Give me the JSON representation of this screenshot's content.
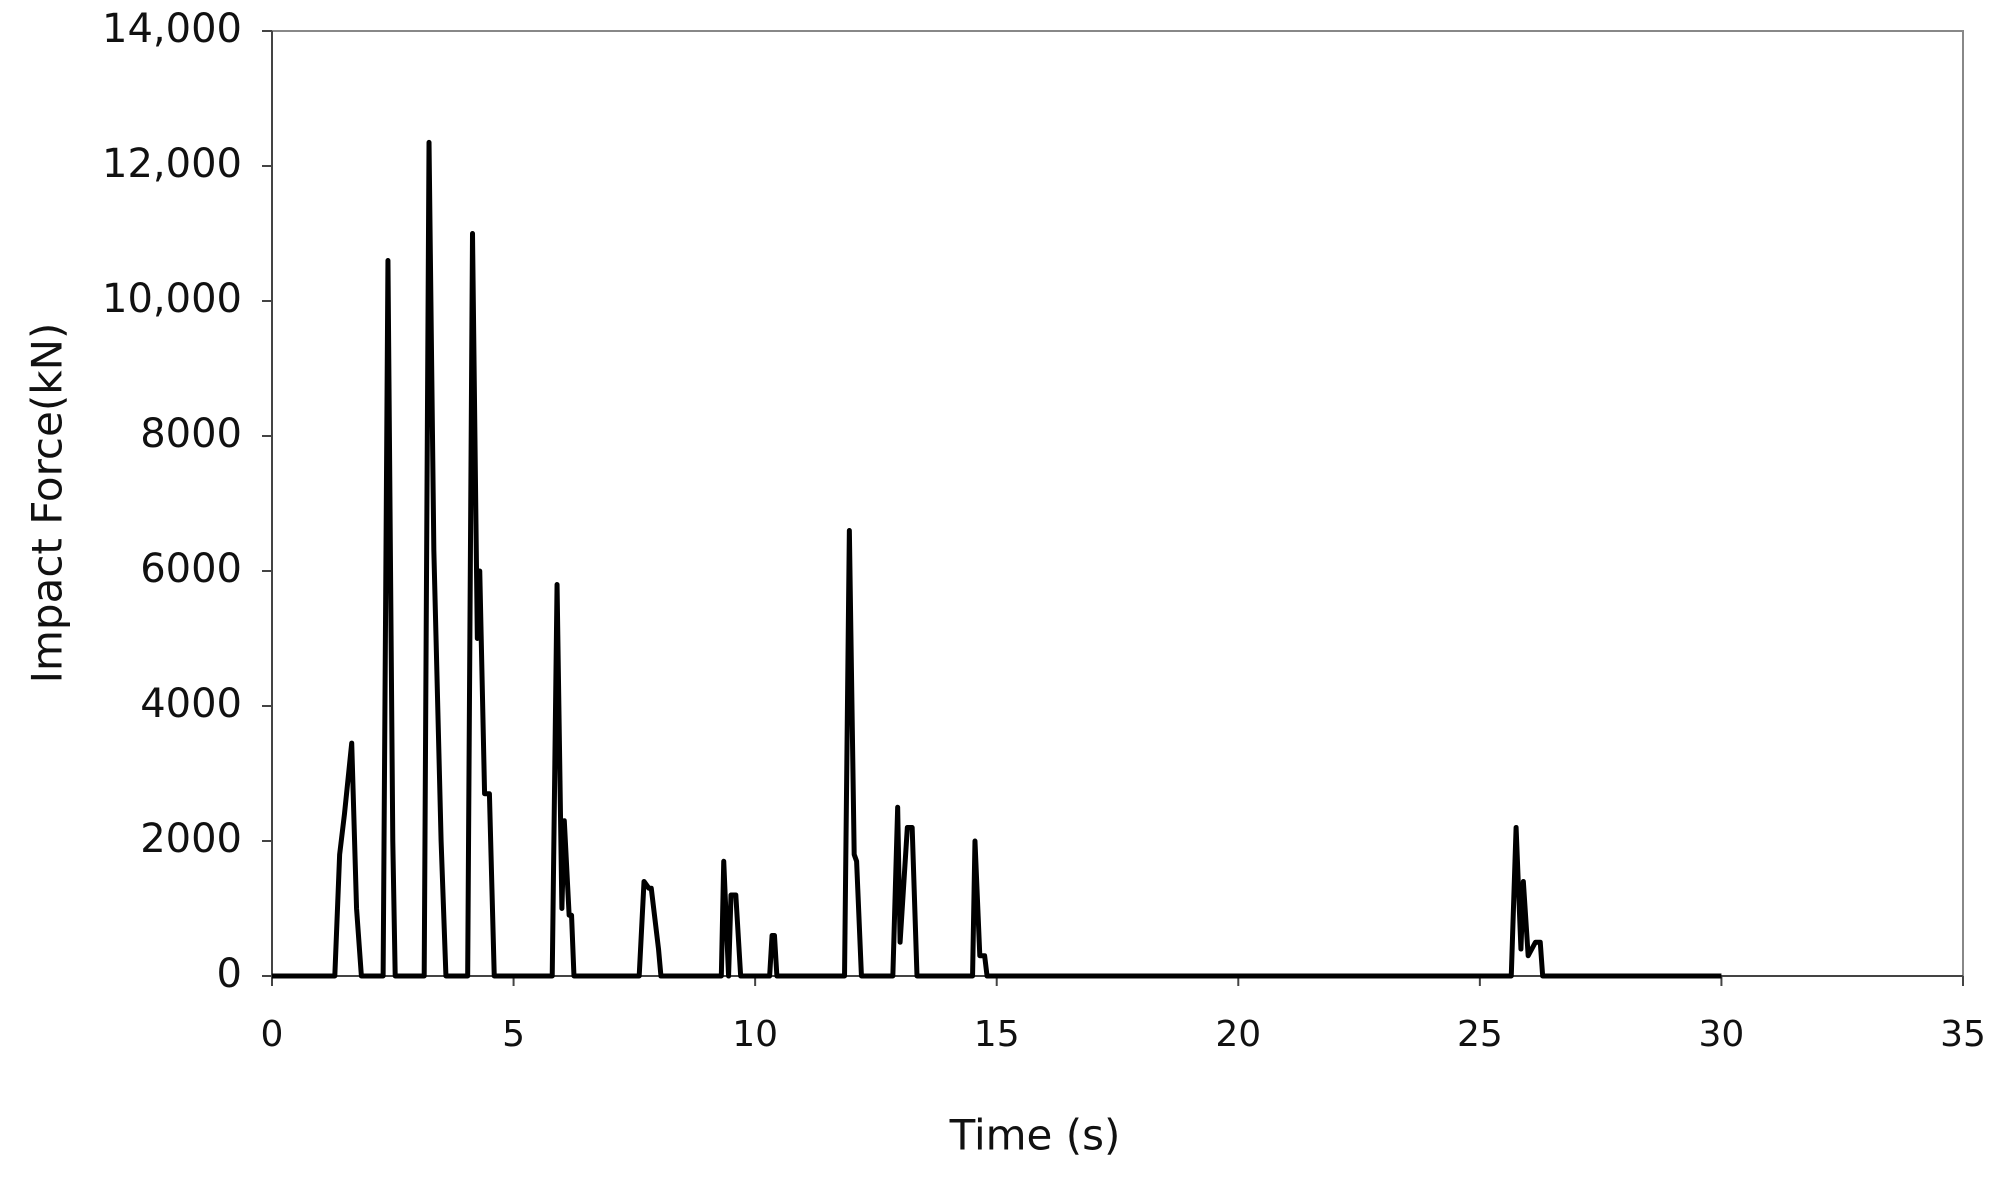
{
  "chart_data": {
    "type": "line",
    "x_label": "Time (s)",
    "y_label": "Impact Force(kN)",
    "xlim": [
      0,
      35
    ],
    "xticks": [
      0,
      5,
      10,
      15,
      20,
      25,
      30,
      35
    ],
    "ylim": [
      0,
      14000
    ],
    "yticks": [
      0,
      2000,
      4000,
      6000,
      8000,
      {
        "value": 10000,
        "label": "10,000"
      },
      {
        "value": 12000,
        "label": "12,000"
      },
      {
        "value": 14000,
        "label": "14,000"
      }
    ],
    "series": [
      {
        "color": "#000000",
        "x": [
          0,
          1.3,
          1.4,
          1.5,
          1.65,
          1.75,
          1.85,
          2.3,
          2.4,
          2.5,
          2.55,
          3.15,
          3.25,
          3.35,
          3.5,
          3.6,
          4.05,
          4.15,
          4.25,
          4.3,
          4.4,
          4.5,
          4.6,
          5.8,
          5.9,
          6.0,
          6.05,
          6.15,
          6.2,
          6.25,
          7.6,
          7.7,
          7.8,
          7.85,
          8.0,
          8.05,
          9.3,
          9.35,
          9.45,
          9.5,
          9.6,
          9.7,
          10.3,
          10.35,
          10.4,
          10.45,
          11.85,
          11.95,
          12.05,
          12.1,
          12.2,
          12.85,
          12.95,
          13.0,
          13.15,
          13.25,
          13.35,
          14.5,
          14.55,
          14.65,
          14.75,
          14.8,
          25.65,
          25.75,
          25.85,
          25.9,
          26.0,
          26.15,
          26.25,
          26.3,
          30
        ],
        "values": [
          0,
          0,
          1800,
          2400,
          3450,
          1000,
          0,
          0,
          10600,
          2000,
          0,
          0,
          12350,
          6300,
          2000,
          0,
          0,
          11000,
          5000,
          6000,
          2700,
          2700,
          0,
          0,
          5800,
          1000,
          2300,
          900,
          900,
          0,
          0,
          1400,
          1300,
          1300,
          400,
          0,
          0,
          1700,
          0,
          1200,
          1200,
          0,
          0,
          600,
          600,
          0,
          0,
          6600,
          1800,
          1700,
          0,
          0,
          2500,
          500,
          2200,
          2200,
          0,
          0,
          2000,
          300,
          300,
          0,
          0,
          2200,
          400,
          1400,
          300,
          500,
          500,
          0,
          0
        ]
      }
    ]
  }
}
